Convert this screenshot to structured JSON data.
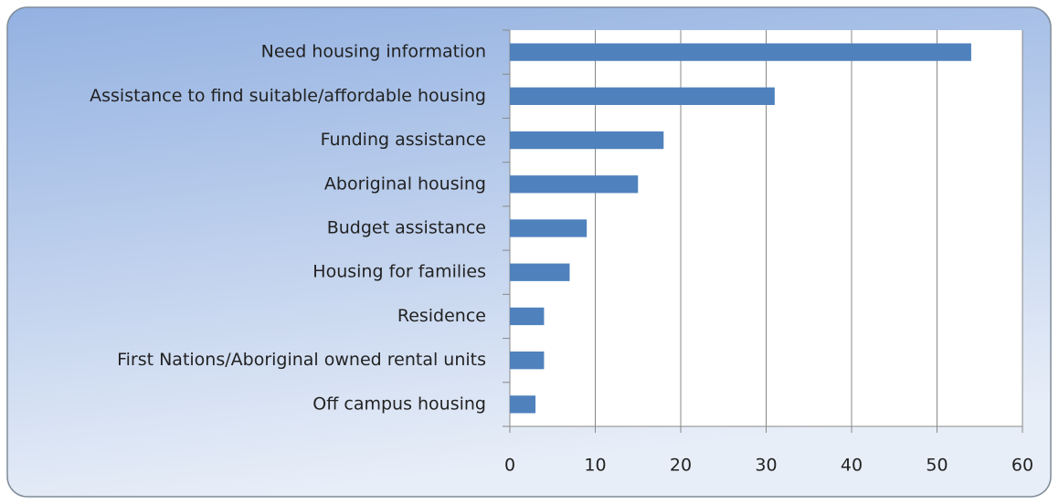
{
  "chart_data": {
    "type": "bar",
    "orientation": "horizontal",
    "categories": [
      "Need housing information",
      "Assistance to find suitable/affordable housing",
      "Funding assistance",
      "Aboriginal housing",
      "Budget assistance",
      "Housing for families",
      "Residence",
      "First Nations/Aboriginal owned rental units",
      "Off campus housing"
    ],
    "values": [
      54,
      31,
      18,
      15,
      9,
      7,
      4,
      4,
      3
    ],
    "color": "#4f81bd",
    "xlim": [
      0,
      60
    ],
    "xticks": [
      0,
      10,
      20,
      30,
      40,
      50,
      60
    ],
    "grid": true
  }
}
